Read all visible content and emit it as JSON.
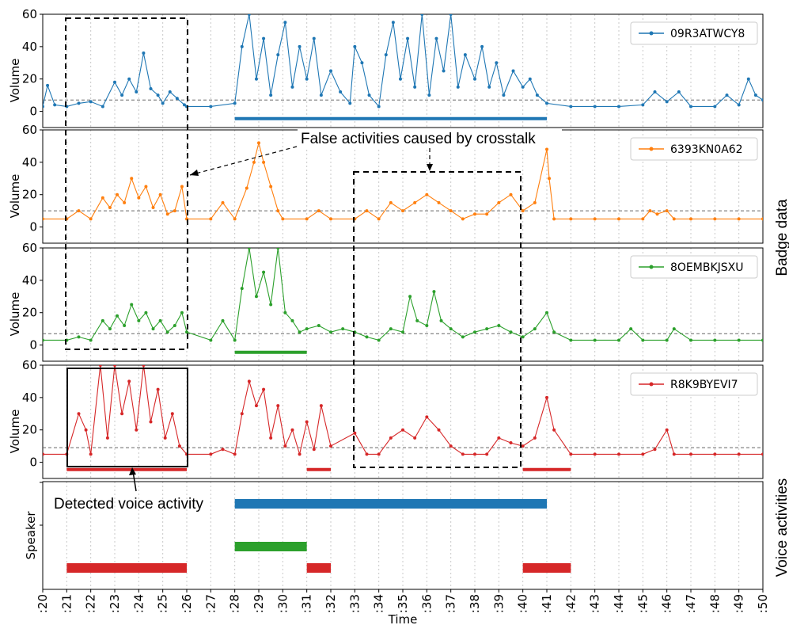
{
  "chart_data": {
    "type": "line",
    "xlabel": "Time",
    "x_ticks": [
      ":20",
      ":21",
      ":22",
      ":23",
      ":24",
      ":25",
      ":26",
      ":27",
      ":28",
      ":29",
      ":30",
      ":31",
      ":32",
      ":33",
      ":34",
      ":35",
      ":36",
      ":37",
      ":38",
      ":39",
      ":40",
      ":41",
      ":42",
      ":43",
      ":44",
      ":45",
      ":46",
      ":47",
      ":48",
      ":49",
      ":50"
    ],
    "xlim": [
      20,
      50
    ],
    "ylim": [
      -10,
      60
    ],
    "y_ticks": [
      0,
      20,
      40,
      60
    ],
    "grid_x": true,
    "threshold_line": "dashed gray",
    "group_labels": {
      "badge": "Badge data",
      "voice": "Voice activities"
    },
    "panels": [
      {
        "name": "09R3ATWCY8",
        "ylabel": "Volume",
        "color": "#1f77b4",
        "threshold": 7,
        "voice_segments": [
          [
            28,
            41
          ]
        ],
        "series": [
          [
            20,
            3
          ],
          [
            20.2,
            16
          ],
          [
            20.5,
            4
          ],
          [
            21,
            3
          ],
          [
            21.5,
            5
          ],
          [
            22,
            6
          ],
          [
            22.5,
            3
          ],
          [
            23,
            18
          ],
          [
            23.3,
            10
          ],
          [
            23.6,
            20
          ],
          [
            23.9,
            12
          ],
          [
            24.2,
            36
          ],
          [
            24.5,
            14
          ],
          [
            24.8,
            10
          ],
          [
            25,
            5
          ],
          [
            25.3,
            12
          ],
          [
            25.6,
            8
          ],
          [
            25.9,
            4
          ],
          [
            26,
            3
          ],
          [
            27,
            3
          ],
          [
            28,
            5
          ],
          [
            28.3,
            40
          ],
          [
            28.6,
            60
          ],
          [
            28.9,
            20
          ],
          [
            29.2,
            45
          ],
          [
            29.5,
            10
          ],
          [
            29.8,
            35
          ],
          [
            30.1,
            55
          ],
          [
            30.4,
            15
          ],
          [
            30.7,
            40
          ],
          [
            31,
            20
          ],
          [
            31.3,
            45
          ],
          [
            31.6,
            10
          ],
          [
            32,
            25
          ],
          [
            32.4,
            12
          ],
          [
            32.8,
            5
          ],
          [
            33,
            40
          ],
          [
            33.3,
            30
          ],
          [
            33.6,
            10
          ],
          [
            34,
            3
          ],
          [
            34.3,
            35
          ],
          [
            34.6,
            55
          ],
          [
            34.9,
            20
          ],
          [
            35.2,
            45
          ],
          [
            35.5,
            15
          ],
          [
            35.8,
            60
          ],
          [
            36.1,
            10
          ],
          [
            36.4,
            45
          ],
          [
            36.7,
            25
          ],
          [
            37,
            60
          ],
          [
            37.3,
            15
          ],
          [
            37.6,
            35
          ],
          [
            38,
            20
          ],
          [
            38.3,
            40
          ],
          [
            38.6,
            15
          ],
          [
            38.9,
            30
          ],
          [
            39.2,
            10
          ],
          [
            39.6,
            25
          ],
          [
            40,
            15
          ],
          [
            40.3,
            20
          ],
          [
            40.6,
            10
          ],
          [
            41,
            5
          ],
          [
            42,
            3
          ],
          [
            43,
            3
          ],
          [
            44,
            3
          ],
          [
            45,
            4
          ],
          [
            45.5,
            12
          ],
          [
            46,
            6
          ],
          [
            46.5,
            12
          ],
          [
            47,
            3
          ],
          [
            48,
            3
          ],
          [
            48.5,
            10
          ],
          [
            49,
            4
          ],
          [
            49.4,
            20
          ],
          [
            49.7,
            10
          ],
          [
            50,
            7
          ]
        ]
      },
      {
        "name": "6393KN0A62",
        "ylabel": "Volume",
        "color": "#ff7f0e",
        "threshold": 10,
        "voice_segments": [],
        "series": [
          [
            20,
            5
          ],
          [
            21,
            5
          ],
          [
            21.5,
            10
          ],
          [
            22,
            5
          ],
          [
            22.5,
            18
          ],
          [
            22.8,
            12
          ],
          [
            23.1,
            20
          ],
          [
            23.4,
            15
          ],
          [
            23.7,
            30
          ],
          [
            24,
            18
          ],
          [
            24.3,
            25
          ],
          [
            24.6,
            12
          ],
          [
            24.9,
            20
          ],
          [
            25.2,
            8
          ],
          [
            25.5,
            10
          ],
          [
            25.8,
            25
          ],
          [
            26,
            5
          ],
          [
            27,
            5
          ],
          [
            27.5,
            15
          ],
          [
            28,
            5
          ],
          [
            28.5,
            24
          ],
          [
            28.8,
            40
          ],
          [
            29,
            52
          ],
          [
            29.2,
            40
          ],
          [
            29.5,
            25
          ],
          [
            29.8,
            10
          ],
          [
            30,
            5
          ],
          [
            31,
            5
          ],
          [
            31.5,
            10
          ],
          [
            32,
            5
          ],
          [
            33,
            5
          ],
          [
            33.5,
            10
          ],
          [
            34,
            5
          ],
          [
            34.5,
            15
          ],
          [
            35,
            10
          ],
          [
            35.5,
            15
          ],
          [
            36,
            20
          ],
          [
            36.5,
            15
          ],
          [
            37,
            10
          ],
          [
            37.5,
            5
          ],
          [
            38,
            8
          ],
          [
            38.5,
            8
          ],
          [
            39,
            15
          ],
          [
            39.5,
            20
          ],
          [
            40,
            10
          ],
          [
            40.5,
            15
          ],
          [
            41,
            48
          ],
          [
            41.1,
            30
          ],
          [
            41.3,
            5
          ],
          [
            42,
            5
          ],
          [
            43,
            5
          ],
          [
            44,
            5
          ],
          [
            45,
            5
          ],
          [
            45.3,
            10
          ],
          [
            45.6,
            8
          ],
          [
            46,
            10
          ],
          [
            46.3,
            5
          ],
          [
            47,
            5
          ],
          [
            48,
            5
          ],
          [
            49,
            5
          ],
          [
            50,
            5
          ]
        ]
      },
      {
        "name": "8OEMBKJSXU",
        "ylabel": "Volume",
        "color": "#2ca02c",
        "threshold": 7,
        "voice_segments": [
          [
            28,
            31
          ]
        ],
        "series": [
          [
            20,
            3
          ],
          [
            21,
            3
          ],
          [
            21.5,
            5
          ],
          [
            22,
            3
          ],
          [
            22.5,
            15
          ],
          [
            22.8,
            10
          ],
          [
            23.1,
            18
          ],
          [
            23.4,
            12
          ],
          [
            23.7,
            25
          ],
          [
            24,
            15
          ],
          [
            24.3,
            20
          ],
          [
            24.6,
            10
          ],
          [
            24.9,
            15
          ],
          [
            25.2,
            8
          ],
          [
            25.5,
            12
          ],
          [
            25.8,
            20
          ],
          [
            26,
            8
          ],
          [
            27,
            3
          ],
          [
            27.5,
            15
          ],
          [
            28,
            3
          ],
          [
            28.3,
            35
          ],
          [
            28.6,
            60
          ],
          [
            28.9,
            30
          ],
          [
            29.2,
            45
          ],
          [
            29.5,
            25
          ],
          [
            29.8,
            60
          ],
          [
            30.1,
            20
          ],
          [
            30.4,
            15
          ],
          [
            30.7,
            8
          ],
          [
            31,
            10
          ],
          [
            31.5,
            12
          ],
          [
            32,
            8
          ],
          [
            32.5,
            10
          ],
          [
            33,
            8
          ],
          [
            33.5,
            5
          ],
          [
            34,
            3
          ],
          [
            34.5,
            10
          ],
          [
            35,
            8
          ],
          [
            35.3,
            30
          ],
          [
            35.6,
            15
          ],
          [
            36,
            12
          ],
          [
            36.3,
            33
          ],
          [
            36.6,
            15
          ],
          [
            37,
            10
          ],
          [
            37.5,
            5
          ],
          [
            38,
            8
          ],
          [
            38.5,
            10
          ],
          [
            39,
            12
          ],
          [
            39.5,
            8
          ],
          [
            40,
            5
          ],
          [
            40.5,
            10
          ],
          [
            41,
            20
          ],
          [
            41.3,
            8
          ],
          [
            42,
            3
          ],
          [
            43,
            3
          ],
          [
            44,
            3
          ],
          [
            44.5,
            10
          ],
          [
            45,
            3
          ],
          [
            46,
            3
          ],
          [
            46.3,
            10
          ],
          [
            47,
            3
          ],
          [
            48,
            3
          ],
          [
            49,
            3
          ],
          [
            50,
            3
          ]
        ]
      },
      {
        "name": "R8K9BYEVI7",
        "ylabel": "Volume",
        "color": "#d62728",
        "threshold": 9,
        "voice_segments": [
          [
            21,
            26
          ],
          [
            31,
            32
          ],
          [
            40,
            42
          ]
        ],
        "series": [
          [
            20,
            5
          ],
          [
            21,
            5
          ],
          [
            21.5,
            30
          ],
          [
            21.8,
            20
          ],
          [
            22,
            5
          ],
          [
            22.4,
            60
          ],
          [
            22.7,
            15
          ],
          [
            23,
            60
          ],
          [
            23.3,
            30
          ],
          [
            23.6,
            50
          ],
          [
            23.9,
            20
          ],
          [
            24.2,
            60
          ],
          [
            24.5,
            25
          ],
          [
            24.8,
            45
          ],
          [
            25.1,
            15
          ],
          [
            25.4,
            30
          ],
          [
            25.7,
            10
          ],
          [
            26,
            5
          ],
          [
            27,
            5
          ],
          [
            27.5,
            8
          ],
          [
            28,
            5
          ],
          [
            28.3,
            30
          ],
          [
            28.6,
            50
          ],
          [
            28.9,
            35
          ],
          [
            29.2,
            45
          ],
          [
            29.5,
            15
          ],
          [
            29.8,
            35
          ],
          [
            30.1,
            10
          ],
          [
            30.4,
            20
          ],
          [
            30.7,
            5
          ],
          [
            31,
            25
          ],
          [
            31.3,
            8
          ],
          [
            31.6,
            35
          ],
          [
            32,
            10
          ],
          [
            33,
            18
          ],
          [
            33.5,
            5
          ],
          [
            34,
            5
          ],
          [
            34.5,
            15
          ],
          [
            35,
            20
          ],
          [
            35.5,
            15
          ],
          [
            36,
            28
          ],
          [
            36.5,
            20
          ],
          [
            37,
            10
          ],
          [
            37.5,
            5
          ],
          [
            38,
            5
          ],
          [
            38.5,
            5
          ],
          [
            39,
            15
          ],
          [
            39.5,
            12
          ],
          [
            40,
            10
          ],
          [
            40.5,
            15
          ],
          [
            41,
            40
          ],
          [
            41.3,
            20
          ],
          [
            42,
            5
          ],
          [
            43,
            5
          ],
          [
            44,
            5
          ],
          [
            45,
            5
          ],
          [
            45.5,
            8
          ],
          [
            46,
            20
          ],
          [
            46.3,
            5
          ],
          [
            47,
            5
          ],
          [
            48,
            5
          ],
          [
            49,
            5
          ],
          [
            50,
            5
          ]
        ]
      }
    ],
    "speaker_panel": {
      "ylabel": "Speaker",
      "rows": [
        {
          "color": "#1f77b4",
          "segments": [
            [
              28,
              41
            ]
          ]
        },
        {
          "color": "#2ca02c",
          "segments": [
            [
              28,
              31
            ]
          ]
        },
        {
          "color": "#d62728",
          "segments": [
            [
              21,
              26
            ],
            [
              31,
              32
            ],
            [
              40,
              42
            ]
          ]
        }
      ]
    },
    "annotations": [
      {
        "text": "False activities caused by crosstalk"
      },
      {
        "text": "Detected voice activity"
      }
    ]
  }
}
